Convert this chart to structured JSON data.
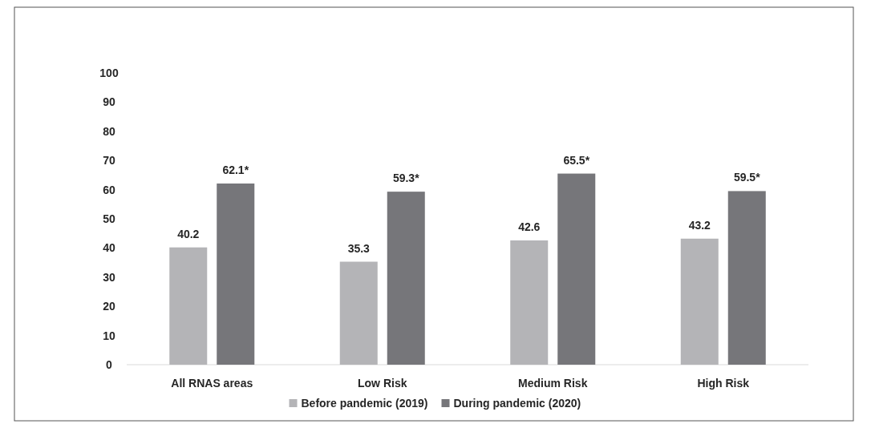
{
  "chart_data": {
    "type": "bar",
    "categories": [
      "All RNAS areas",
      "Low Risk",
      "Medium Risk",
      "High Risk"
    ],
    "series": [
      {
        "name": "Before pandemic (2019)",
        "color": "#b4b4b7",
        "values": [
          40.2,
          35.3,
          42.6,
          43.2
        ],
        "value_labels": [
          "40.2",
          "35.3",
          "42.6",
          "43.2"
        ]
      },
      {
        "name": "During pandemic (2020)",
        "color": "#76767a",
        "values": [
          62.1,
          59.3,
          65.5,
          59.5
        ],
        "value_labels": [
          "62.1*",
          "59.3*",
          "65.5*",
          "59.5*"
        ]
      }
    ],
    "ylim": [
      0,
      100
    ],
    "yticks": [
      0,
      10,
      20,
      30,
      40,
      50,
      60,
      70,
      80,
      90,
      100
    ],
    "grid": false,
    "legend": "bottom"
  }
}
